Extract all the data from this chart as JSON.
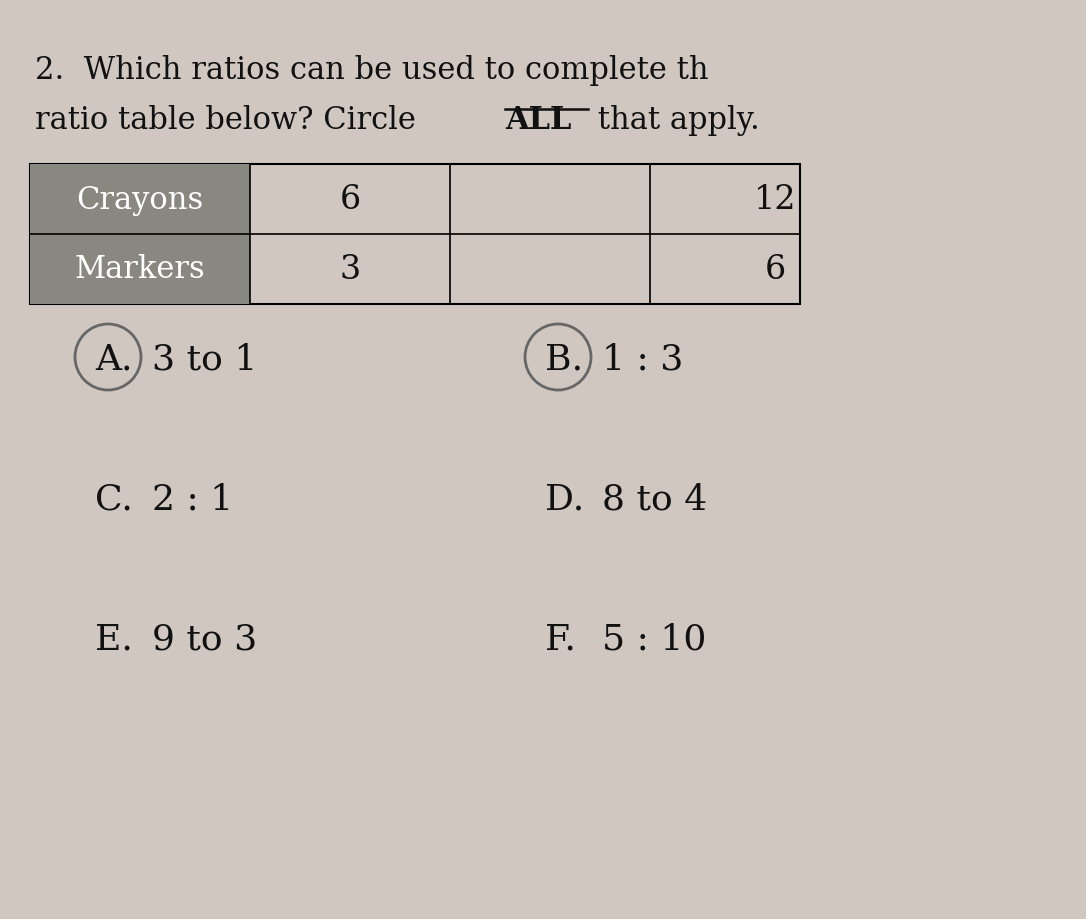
{
  "background_color": "#d0c8c0",
  "title_line1": "2.  Which ratios can be used to complete th",
  "title_line2_pre": "ratio table below? Circle ",
  "title_ALL": "ALL",
  "title_line2_post": " that apply.",
  "table": {
    "row1_label": "Crayons",
    "row2_label": "Markers",
    "col2_row1": "6",
    "col2_row2": "3",
    "col4_row1": "12",
    "col4_row2": "6",
    "label_bg": "#888880",
    "label_text_color": "#ffffff",
    "table_text_color": "#111111"
  },
  "options": [
    {
      "letter": "A",
      "text": "3 to 1",
      "circled": true
    },
    {
      "letter": "B",
      "text": "1 : 3",
      "circled": true
    },
    {
      "letter": "C",
      "text": "2 : 1",
      "circled": false
    },
    {
      "letter": "D",
      "text": "8 to 4",
      "circled": false
    },
    {
      "letter": "E",
      "text": "9 to 3",
      "circled": false
    },
    {
      "letter": "F",
      "text": "5 : 10",
      "circled": false
    }
  ],
  "font_size_title": 22,
  "font_size_table": 24,
  "font_size_options": 26,
  "text_color": "#111111"
}
